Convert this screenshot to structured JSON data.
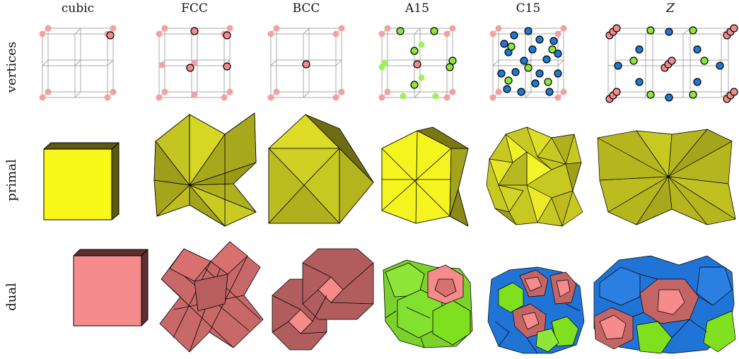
{
  "columns": [
    "cubic",
    "FCC",
    "BCC",
    "A15",
    "C15",
    "Z"
  ],
  "rows": [
    "vertices",
    "primal",
    "dual"
  ],
  "colors": {
    "vertex_pink": "#f28b8b",
    "vertex_green": "#8ee63b",
    "vertex_blue": "#1f78d1",
    "primal_yellow": "#f4f41a",
    "primal_olive": "#b5b51e",
    "dual_pink": "#f48b8b",
    "dual_rose": "#c36565",
    "dual_green": "#7fe01f",
    "dual_blue": "#1f74d6",
    "lattice_gray": "#9a9a9a"
  }
}
